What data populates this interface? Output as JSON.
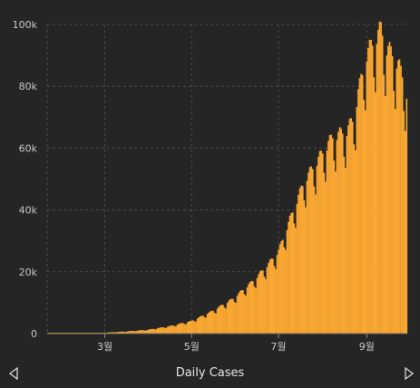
{
  "footer": {
    "title": "Daily Cases",
    "prev_icon": "triangle-left-outline-icon",
    "next_icon": "triangle-right-outline-icon"
  },
  "colors": {
    "background": "#252525",
    "bar": "#f9a732",
    "grid": "#4a4a4a",
    "text": "#c8c8c8"
  },
  "chart_data": {
    "type": "bar",
    "title": "Daily Cases",
    "xlabel": "",
    "ylabel": "",
    "ylim": [
      0,
      100000
    ],
    "yticks": [
      {
        "value": 0,
        "label": "0"
      },
      {
        "value": 20000,
        "label": "20k"
      },
      {
        "value": 40000,
        "label": "40k"
      },
      {
        "value": 60000,
        "label": "60k"
      },
      {
        "value": 80000,
        "label": "80k"
      },
      {
        "value": 100000,
        "label": "100k"
      }
    ],
    "xticks": [
      {
        "index": 40,
        "label": "3월"
      },
      {
        "index": 101,
        "label": "5월"
      },
      {
        "index": 162,
        "label": "7월"
      },
      {
        "index": 224,
        "label": "9월"
      }
    ],
    "grid": true,
    "legend": "none",
    "x_start": "2020-01-22",
    "x_end": "2020-10-15",
    "control_points": [
      [
        0,
        0
      ],
      [
        30,
        100
      ],
      [
        40,
        300
      ],
      [
        55,
        700
      ],
      [
        70,
        1200
      ],
      [
        85,
        2300
      ],
      [
        101,
        4000
      ],
      [
        115,
        7000
      ],
      [
        130,
        11000
      ],
      [
        145,
        17000
      ],
      [
        155,
        22000
      ],
      [
        162,
        26000
      ],
      [
        170,
        36000
      ],
      [
        180,
        48000
      ],
      [
        190,
        55000
      ],
      [
        200,
        62000
      ],
      [
        210,
        64000
      ],
      [
        215,
        68000
      ],
      [
        218,
        76000
      ],
      [
        224,
        88000
      ],
      [
        230,
        93000
      ],
      [
        234,
        96000
      ],
      [
        238,
        90000
      ],
      [
        242,
        88000
      ],
      [
        246,
        85000
      ],
      [
        250,
        80000
      ],
      [
        252,
        76000
      ]
    ],
    "weekly_dip": [
      1.0,
      1.04,
      1.06,
      1.05,
      1.02,
      0.9,
      0.84
    ],
    "values": []
  }
}
